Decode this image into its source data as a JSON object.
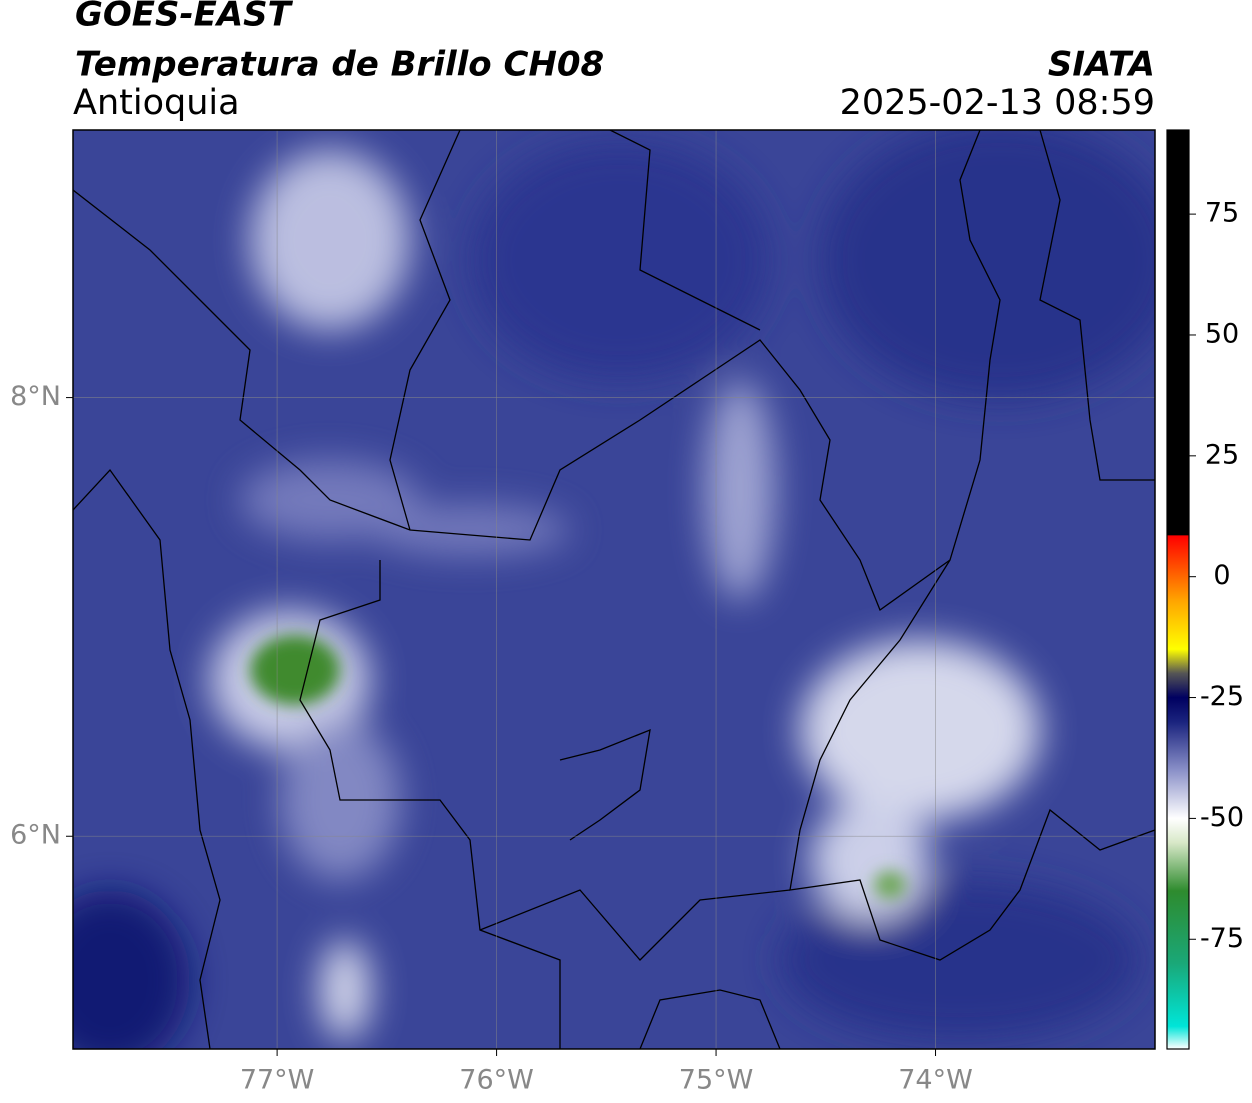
{
  "header": {
    "title": "GOES-EAST",
    "subtitle": "Temperatura de Brillo CH08",
    "region": "Antioquia",
    "source": "SIATA",
    "datetime": "2025-02-13 08:59"
  },
  "map": {
    "xlim": [
      -77.93,
      -73.0
    ],
    "ylim": [
      5.03,
      9.22
    ],
    "xticks": [
      {
        "value": -77,
        "label": "77°W"
      },
      {
        "value": -76,
        "label": "76°W"
      },
      {
        "value": -75,
        "label": "75°W"
      },
      {
        "value": -74,
        "label": "74°W"
      }
    ],
    "yticks": [
      {
        "value": 8,
        "label": "8°N"
      },
      {
        "value": 6,
        "label": "6°N"
      }
    ],
    "grid": true
  },
  "colorbar": {
    "lim": [
      -97.7,
      92.4
    ],
    "ticks": [
      75,
      50,
      25,
      0,
      -25,
      -50,
      -75
    ],
    "stops": [
      {
        "value": -97.7,
        "color": "#ffffff"
      },
      {
        "value": -93,
        "color": "#00e5d8"
      },
      {
        "value": -80,
        "color": "#1aa878"
      },
      {
        "value": -65,
        "color": "#2e8b2e"
      },
      {
        "value": -55,
        "color": "#d8e8c8"
      },
      {
        "value": -50,
        "color": "#ffffff"
      },
      {
        "value": -40,
        "color": "#8a90c8"
      },
      {
        "value": -30,
        "color": "#1a237e"
      },
      {
        "value": -25,
        "color": "#000060"
      },
      {
        "value": -20,
        "color": "#555555"
      },
      {
        "value": -15,
        "color": "#ffff00"
      },
      {
        "value": -5,
        "color": "#ffa500"
      },
      {
        "value": 8.5,
        "color": "#ff0000"
      },
      {
        "value": 8.6,
        "color": "#000000"
      },
      {
        "value": 92.4,
        "color": "#000000"
      }
    ]
  }
}
